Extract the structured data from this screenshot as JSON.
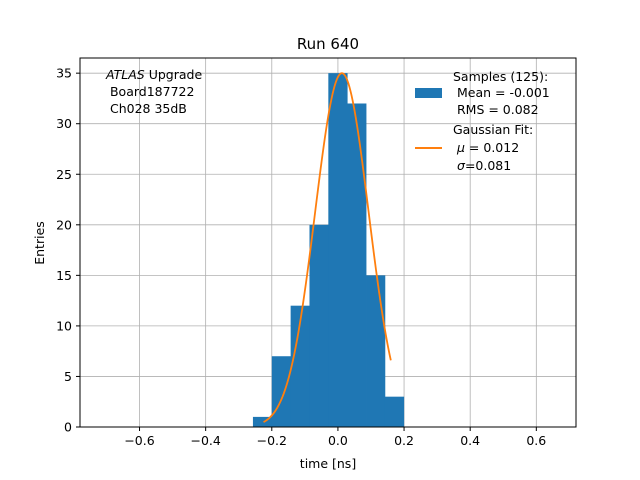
{
  "chart_data": {
    "type": "bar",
    "title": "Run 640",
    "xlabel": "time [ns]",
    "ylabel": "Entries",
    "xlim": [
      -0.78,
      0.72
    ],
    "ylim": [
      0,
      36.5
    ],
    "grid": true,
    "x_ticks": [
      -0.6,
      -0.4,
      -0.2,
      0.0,
      0.2,
      0.4,
      0.6
    ],
    "x_tick_labels": [
      "−0.6",
      "−0.4",
      "−0.2",
      "0.0",
      "0.2",
      "0.4",
      "0.6"
    ],
    "y_ticks": [
      0,
      5,
      10,
      15,
      20,
      25,
      30,
      35
    ],
    "y_tick_labels": [
      "0",
      "5",
      "10",
      "15",
      "20",
      "25",
      "30",
      "35"
    ],
    "histogram": {
      "color": "#1f77b4",
      "bin_edges": [
        -0.257,
        -0.2,
        -0.143,
        -0.086,
        -0.029,
        0.028,
        0.085,
        0.142,
        0.199
      ],
      "counts": [
        1,
        7,
        12,
        20,
        35,
        32,
        15,
        3
      ]
    },
    "fit": {
      "color": "#ff7f0e",
      "type": "gaussian",
      "amplitude": 35,
      "mean": 0.012,
      "sigma": 0.081,
      "x_range": [
        -0.225,
        0.16
      ]
    },
    "annotation": {
      "line1_italic": "ATLAS",
      "line1_rest": " Upgrade",
      "line2": " Board187722",
      "line3": " Ch028 35dB"
    },
    "legend": {
      "position": "upper right",
      "samples": {
        "line1": "Samples (125):",
        "line2": " Mean = -0.001",
        "line3": " RMS = 0.082"
      },
      "fit": {
        "line1": "Gaussian Fit:",
        "mu_symbol": "μ",
        "mu_rest": " = 0.012",
        "sigma_symbol": "σ",
        "sigma_rest": "=0.081"
      }
    }
  }
}
